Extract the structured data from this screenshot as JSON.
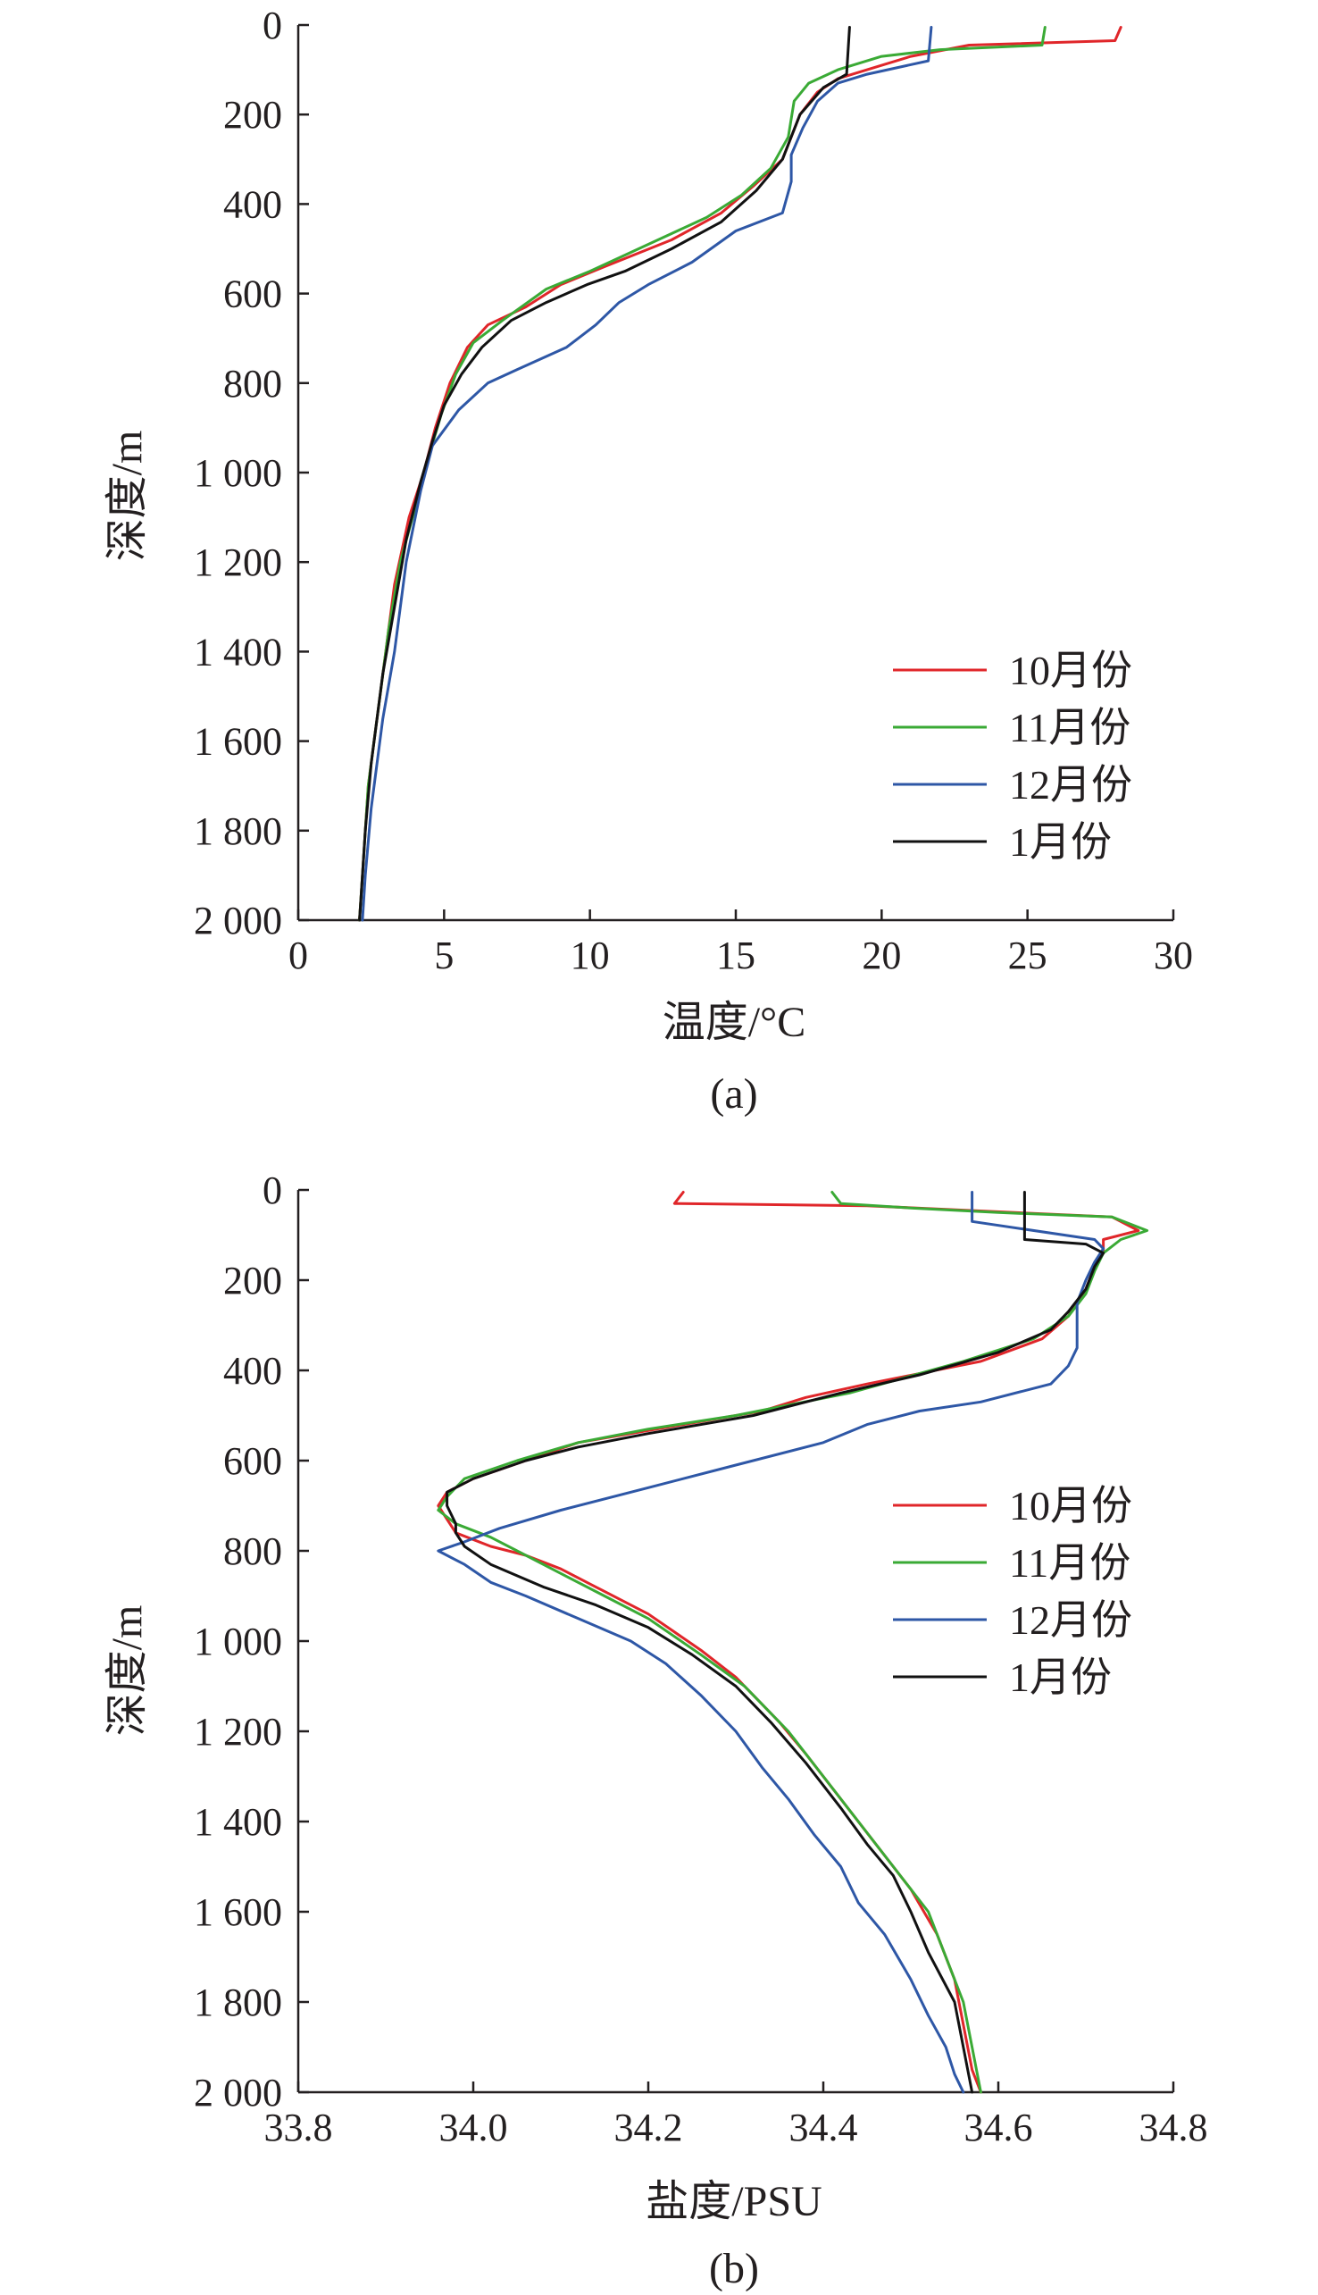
{
  "chart_data": [
    {
      "type": "line",
      "panel_label": "(a)",
      "xlabel": "温度/°C",
      "ylabel": "深度/m",
      "xlim": [
        0,
        30
      ],
      "ylim": [
        0,
        2000
      ],
      "y_inverted": true,
      "x_ticks": [
        "0",
        "5",
        "10",
        "15",
        "20",
        "25",
        "30"
      ],
      "y_ticks": [
        "0",
        "200",
        "400",
        "600",
        "800",
        "1 000",
        "1 200",
        "1 400",
        "1 600",
        "1 800",
        "2 000"
      ],
      "grid": false,
      "legend_position": "lower-right",
      "series": [
        {
          "name": "10月份",
          "color": "#e0262a",
          "points": [
            [
              28.2,
              5
            ],
            [
              28.0,
              35
            ],
            [
              23.0,
              45
            ],
            [
              21.0,
              70
            ],
            [
              19.5,
              100
            ],
            [
              18.5,
              120
            ],
            [
              17.8,
              150
            ],
            [
              17.2,
              200
            ],
            [
              16.6,
              300
            ],
            [
              15.6,
              360
            ],
            [
              14.5,
              420
            ],
            [
              12.8,
              480
            ],
            [
              10.5,
              540
            ],
            [
              9.0,
              580
            ],
            [
              7.8,
              630
            ],
            [
              6.5,
              670
            ],
            [
              5.8,
              720
            ],
            [
              5.2,
              800
            ],
            [
              4.7,
              900
            ],
            [
              4.3,
              1000
            ],
            [
              3.8,
              1100
            ],
            [
              3.3,
              1250
            ],
            [
              3.0,
              1400
            ],
            [
              2.8,
              1500
            ],
            [
              2.6,
              1600
            ],
            [
              2.4,
              1700
            ],
            [
              2.3,
              1800
            ],
            [
              2.2,
              1900
            ],
            [
              2.1,
              2000
            ]
          ]
        },
        {
          "name": "11月份",
          "color": "#3aaa35",
          "points": [
            [
              25.6,
              5
            ],
            [
              25.5,
              45
            ],
            [
              22.0,
              55
            ],
            [
              20.0,
              70
            ],
            [
              18.5,
              100
            ],
            [
              17.5,
              130
            ],
            [
              17.0,
              170
            ],
            [
              16.8,
              250
            ],
            [
              16.2,
              320
            ],
            [
              15.2,
              380
            ],
            [
              14.0,
              430
            ],
            [
              12.0,
              490
            ],
            [
              10.0,
              550
            ],
            [
              8.5,
              590
            ],
            [
              7.0,
              660
            ],
            [
              6.0,
              710
            ],
            [
              5.4,
              780
            ],
            [
              4.9,
              870
            ],
            [
              4.4,
              980
            ],
            [
              4.0,
              1080
            ],
            [
              3.5,
              1200
            ],
            [
              3.1,
              1350
            ],
            [
              2.8,
              1500
            ],
            [
              2.6,
              1600
            ],
            [
              2.4,
              1700
            ],
            [
              2.3,
              1800
            ],
            [
              2.2,
              1900
            ],
            [
              2.1,
              2000
            ]
          ]
        },
        {
          "name": "12月份",
          "color": "#2e57a6",
          "points": [
            [
              21.7,
              5
            ],
            [
              21.6,
              80
            ],
            [
              19.5,
              110
            ],
            [
              18.5,
              130
            ],
            [
              17.8,
              170
            ],
            [
              17.3,
              230
            ],
            [
              16.9,
              290
            ],
            [
              16.9,
              350
            ],
            [
              16.6,
              420
            ],
            [
              15.0,
              460
            ],
            [
              13.5,
              530
            ],
            [
              12.0,
              580
            ],
            [
              11.0,
              620
            ],
            [
              10.2,
              670
            ],
            [
              9.2,
              720
            ],
            [
              7.5,
              770
            ],
            [
              6.5,
              800
            ],
            [
              5.5,
              860
            ],
            [
              4.6,
              940
            ],
            [
              4.2,
              1040
            ],
            [
              3.7,
              1200
            ],
            [
              3.3,
              1400
            ],
            [
              2.9,
              1550
            ],
            [
              2.7,
              1650
            ],
            [
              2.5,
              1750
            ],
            [
              2.3,
              1900
            ],
            [
              2.2,
              2000
            ]
          ]
        },
        {
          "name": "1月份",
          "color": "#111111",
          "points": [
            [
              18.9,
              5
            ],
            [
              18.8,
              110
            ],
            [
              18.0,
              140
            ],
            [
              17.2,
              200
            ],
            [
              16.6,
              300
            ],
            [
              15.7,
              370
            ],
            [
              14.5,
              440
            ],
            [
              12.8,
              500
            ],
            [
              11.2,
              550
            ],
            [
              9.9,
              580
            ],
            [
              8.5,
              620
            ],
            [
              7.3,
              660
            ],
            [
              6.3,
              720
            ],
            [
              5.6,
              780
            ],
            [
              5.0,
              850
            ],
            [
              4.6,
              930
            ],
            [
              4.2,
              1020
            ],
            [
              3.7,
              1150
            ],
            [
              3.3,
              1300
            ],
            [
              2.9,
              1450
            ],
            [
              2.7,
              1550
            ],
            [
              2.5,
              1650
            ],
            [
              2.3,
              1800
            ],
            [
              2.2,
              1900
            ],
            [
              2.1,
              2000
            ]
          ]
        }
      ]
    },
    {
      "type": "line",
      "panel_label": "(b)",
      "xlabel": "盐度/PSU",
      "ylabel": "深度/m",
      "xlim": [
        33.8,
        34.8
      ],
      "ylim": [
        0,
        2000
      ],
      "y_inverted": true,
      "x_ticks": [
        "33.8",
        "34.0",
        "34.2",
        "34.4",
        "34.6",
        "34.8"
      ],
      "y_ticks": [
        "0",
        "200",
        "400",
        "600",
        "800",
        "1 000",
        "1 200",
        "1 400",
        "1 600",
        "1 800",
        "2 000"
      ],
      "grid": false,
      "legend_position": "right",
      "series": [
        {
          "name": "10月份",
          "color": "#e0262a",
          "points": [
            [
              34.24,
              5
            ],
            [
              34.23,
              30
            ],
            [
              34.45,
              35
            ],
            [
              34.73,
              60
            ],
            [
              34.76,
              90
            ],
            [
              34.72,
              110
            ],
            [
              34.72,
              140
            ],
            [
              34.71,
              170
            ],
            [
              34.7,
              220
            ],
            [
              34.68,
              280
            ],
            [
              34.65,
              330
            ],
            [
              34.58,
              380
            ],
            [
              34.45,
              430
            ],
            [
              34.38,
              460
            ],
            [
              34.33,
              490
            ],
            [
              34.24,
              520
            ],
            [
              34.12,
              560
            ],
            [
              34.06,
              600
            ],
            [
              34.0,
              640
            ],
            [
              33.97,
              670
            ],
            [
              33.96,
              700
            ],
            [
              33.98,
              760
            ],
            [
              34.02,
              790
            ],
            [
              34.06,
              810
            ],
            [
              34.1,
              840
            ],
            [
              34.14,
              880
            ],
            [
              34.2,
              940
            ],
            [
              34.26,
              1020
            ],
            [
              34.3,
              1080
            ],
            [
              34.35,
              1180
            ],
            [
              34.38,
              1250
            ],
            [
              34.42,
              1350
            ],
            [
              34.46,
              1450
            ],
            [
              34.5,
              1550
            ],
            [
              34.53,
              1650
            ],
            [
              34.55,
              1750
            ],
            [
              34.56,
              1850
            ],
            [
              34.57,
              1950
            ],
            [
              34.58,
              2000
            ]
          ]
        },
        {
          "name": "11月份",
          "color": "#3aaa35",
          "points": [
            [
              34.41,
              5
            ],
            [
              34.42,
              30
            ],
            [
              34.5,
              40
            ],
            [
              34.6,
              50
            ],
            [
              34.73,
              60
            ],
            [
              34.77,
              90
            ],
            [
              34.74,
              110
            ],
            [
              34.72,
              140
            ],
            [
              34.71,
              180
            ],
            [
              34.7,
              230
            ],
            [
              34.68,
              280
            ],
            [
              34.64,
              330
            ],
            [
              34.56,
              380
            ],
            [
              34.43,
              450
            ],
            [
              34.3,
              500
            ],
            [
              34.2,
              530
            ],
            [
              34.12,
              560
            ],
            [
              34.05,
              600
            ],
            [
              33.99,
              640
            ],
            [
              33.97,
              680
            ],
            [
              33.96,
              710
            ],
            [
              33.98,
              740
            ],
            [
              34.02,
              770
            ],
            [
              34.06,
              810
            ],
            [
              34.1,
              850
            ],
            [
              34.14,
              890
            ],
            [
              34.2,
              950
            ],
            [
              34.26,
              1030
            ],
            [
              34.31,
              1100
            ],
            [
              34.36,
              1200
            ],
            [
              34.4,
              1300
            ],
            [
              34.44,
              1400
            ],
            [
              34.48,
              1500
            ],
            [
              34.52,
              1600
            ],
            [
              34.54,
              1700
            ],
            [
              34.56,
              1800
            ],
            [
              34.57,
              1900
            ],
            [
              34.58,
              2000
            ]
          ]
        },
        {
          "name": "12月份",
          "color": "#2e57a6",
          "points": [
            [
              34.57,
              5
            ],
            [
              34.57,
              70
            ],
            [
              34.71,
              110
            ],
            [
              34.72,
              130
            ],
            [
              34.71,
              160
            ],
            [
              34.7,
              200
            ],
            [
              34.69,
              250
            ],
            [
              34.69,
              300
            ],
            [
              34.69,
              350
            ],
            [
              34.68,
              390
            ],
            [
              34.66,
              430
            ],
            [
              34.58,
              470
            ],
            [
              34.51,
              490
            ],
            [
              34.45,
              520
            ],
            [
              34.4,
              560
            ],
            [
              34.3,
              610
            ],
            [
              34.2,
              660
            ],
            [
              34.1,
              710
            ],
            [
              34.03,
              750
            ],
            [
              33.99,
              780
            ],
            [
              33.96,
              800
            ],
            [
              33.99,
              830
            ],
            [
              34.02,
              870
            ],
            [
              34.06,
              900
            ],
            [
              34.12,
              950
            ],
            [
              34.18,
              1000
            ],
            [
              34.22,
              1050
            ],
            [
              34.26,
              1120
            ],
            [
              34.3,
              1200
            ],
            [
              34.33,
              1280
            ],
            [
              34.36,
              1350
            ],
            [
              34.39,
              1430
            ],
            [
              34.42,
              1500
            ],
            [
              34.44,
              1580
            ],
            [
              34.47,
              1650
            ],
            [
              34.5,
              1750
            ],
            [
              34.52,
              1830
            ],
            [
              34.54,
              1900
            ],
            [
              34.55,
              1960
            ],
            [
              34.56,
              2000
            ]
          ]
        },
        {
          "name": "1月份",
          "color": "#111111",
          "points": [
            [
              34.63,
              5
            ],
            [
              34.63,
              110
            ],
            [
              34.7,
              120
            ],
            [
              34.72,
              140
            ],
            [
              34.71,
              170
            ],
            [
              34.7,
              220
            ],
            [
              34.68,
              270
            ],
            [
              34.66,
              310
            ],
            [
              34.6,
              360
            ],
            [
              34.51,
              410
            ],
            [
              34.42,
              450
            ],
            [
              34.32,
              500
            ],
            [
              34.2,
              540
            ],
            [
              34.12,
              570
            ],
            [
              34.06,
              600
            ],
            [
              34.0,
              640
            ],
            [
              33.97,
              670
            ],
            [
              33.97,
              700
            ],
            [
              33.98,
              740
            ],
            [
              33.98,
              760
            ],
            [
              33.99,
              790
            ],
            [
              34.02,
              830
            ],
            [
              34.08,
              880
            ],
            [
              34.14,
              920
            ],
            [
              34.2,
              970
            ],
            [
              34.25,
              1030
            ],
            [
              34.3,
              1100
            ],
            [
              34.34,
              1180
            ],
            [
              34.38,
              1270
            ],
            [
              34.42,
              1370
            ],
            [
              34.45,
              1450
            ],
            [
              34.48,
              1520
            ],
            [
              34.5,
              1600
            ],
            [
              34.52,
              1690
            ],
            [
              34.55,
              1800
            ],
            [
              34.56,
              1900
            ],
            [
              34.57,
              2000
            ]
          ]
        }
      ]
    }
  ]
}
